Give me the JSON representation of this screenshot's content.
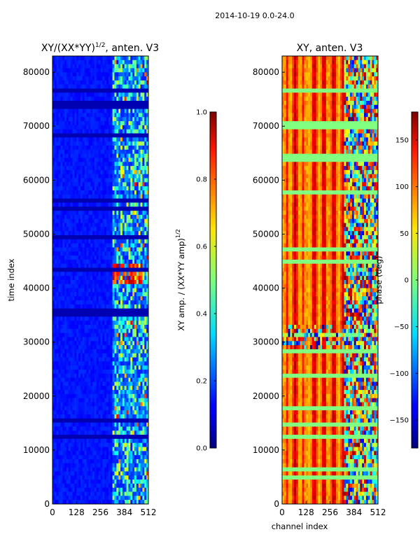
{
  "suptitle": "2014-10-19 0.0-24.0",
  "chart_data": [
    {
      "type": "heatmap",
      "title": "XY/(XX*YY)",
      "title_exponent": "1/2",
      "title_suffix": ", anten. V3",
      "xlabel": "",
      "ylabel": "time index",
      "xticks": [
        0,
        128,
        256,
        384,
        512
      ],
      "yticks": [
        0,
        10000,
        20000,
        30000,
        40000,
        50000,
        60000,
        70000,
        80000
      ],
      "xlim": [
        0,
        512
      ],
      "ylim": [
        0,
        83000
      ],
      "colorbar": {
        "label": "XY amp. / (XX*YY amp)",
        "label_exponent": "1/2",
        "ticks": [
          "0.0",
          "0.2",
          "0.4",
          "0.6",
          "0.8",
          "1.0"
        ],
        "range": [
          0.0,
          1.0
        ],
        "colormap": "jet"
      }
    },
    {
      "type": "heatmap",
      "title": "XY, anten. V3",
      "xlabel": "channel index",
      "ylabel": "",
      "xticks": [
        0,
        128,
        256,
        384,
        512
      ],
      "yticks": [
        0,
        10000,
        20000,
        30000,
        40000,
        50000,
        60000,
        70000,
        80000
      ],
      "xlim": [
        0,
        512
      ],
      "ylim": [
        0,
        83000
      ],
      "colorbar": {
        "label": "phase (deg)",
        "ticks": [
          "−150",
          "−100",
          "−50",
          "0",
          "50",
          "100",
          "150"
        ],
        "range": [
          -180,
          180
        ],
        "colormap": "jet"
      }
    }
  ]
}
